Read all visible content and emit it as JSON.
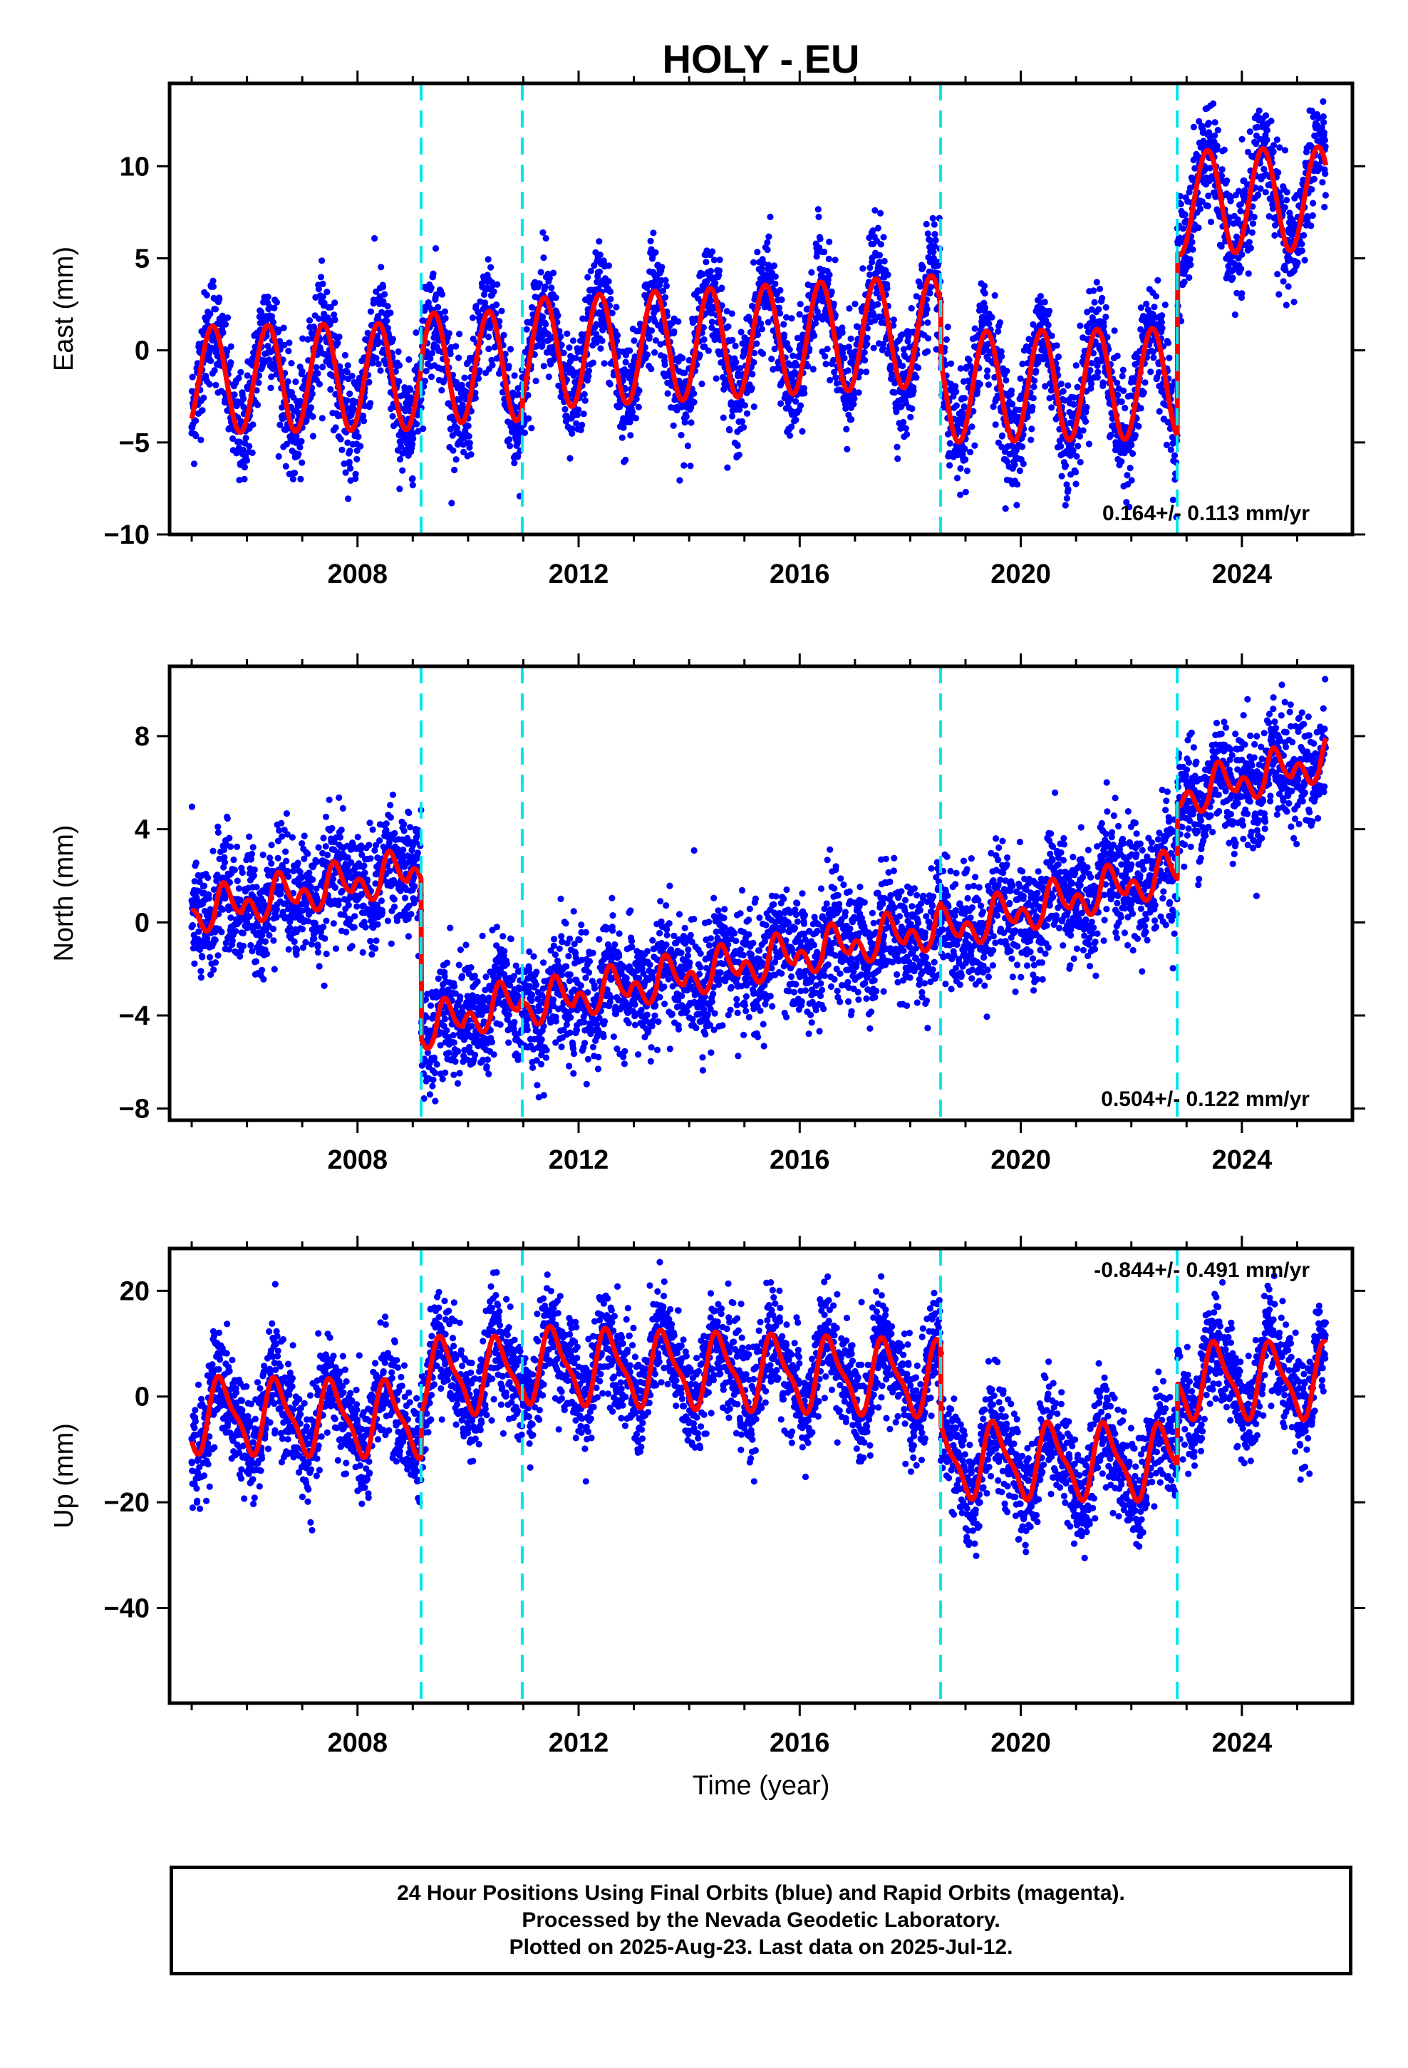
{
  "chart_data": [
    {
      "type": "scatter",
      "title": "HOLY - EU",
      "xlabel": "",
      "ylabel": "East (mm)",
      "xlim": [
        2004.6,
        2026.0
      ],
      "ylim": [
        -10,
        14.5
      ],
      "xticks": [
        2008,
        2012,
        2016,
        2020,
        2024
      ],
      "yticks": [
        -10,
        -5,
        0,
        5,
        10
      ],
      "rate_text": "0.164+/- 0.113 mm/yr",
      "rate_position": "bottom-right",
      "steps": [
        2009.15,
        2010.98,
        2018.55,
        2022.83
      ],
      "series": [
        {
          "kind": "points",
          "color": "#0000ff",
          "x": [
            2005.0,
            2005.5,
            2006.0,
            2006.5,
            2007.0,
            2007.5,
            2008.0,
            2008.5,
            2009.0,
            2009.5,
            2010.0,
            2010.5,
            2011.0,
            2011.5,
            2012.0,
            2012.5,
            2013.0,
            2013.5,
            2014.0,
            2014.5,
            2015.0,
            2015.5,
            2016.0,
            2016.5,
            2017.0,
            2017.5,
            2018.0,
            2018.5,
            2019.0,
            2019.5,
            2020.0,
            2020.5,
            2021.0,
            2021.5,
            2022.0,
            2022.5,
            2023.0,
            2023.5,
            2024.0,
            2024.5,
            2025.0,
            2025.5
          ],
          "y": [
            -4.5,
            1.0,
            -4.3,
            1.2,
            -4.2,
            1.4,
            -4.0,
            1.6,
            -4.0,
            1.8,
            -3.7,
            2.0,
            -3.5,
            3.0,
            -2.0,
            3.5,
            -2.0,
            3.8,
            -1.7,
            4.0,
            -1.5,
            4.2,
            -1.3,
            4.3,
            -1.2,
            4.4,
            -1.0,
            4.6,
            -4.8,
            0.8,
            -4.8,
            0.9,
            -4.6,
            1.0,
            -4.5,
            1.2,
            5.0,
            10.5,
            5.2,
            10.8,
            5.4,
            10.9
          ]
        },
        {
          "kind": "model",
          "color": "#ff0000",
          "description_none": ""
        }
      ]
    },
    {
      "type": "scatter",
      "xlabel": "",
      "ylabel": "North (mm)",
      "xlim": [
        2004.6,
        2026.0
      ],
      "ylim": [
        -8.5,
        11
      ],
      "xticks": [
        2008,
        2012,
        2016,
        2020,
        2024
      ],
      "yticks": [
        -8,
        -4,
        0,
        4,
        8
      ],
      "rate_text": "0.504+/- 0.122 mm/yr",
      "rate_position": "bottom-right",
      "steps": [
        2009.15,
        2010.98,
        2018.55,
        2022.83
      ],
      "series": [
        {
          "kind": "points",
          "color": "#0000ff",
          "x": [
            2005.0,
            2005.5,
            2006.0,
            2006.5,
            2007.0,
            2007.5,
            2008.0,
            2008.5,
            2009.0,
            2009.5,
            2010.0,
            2010.5,
            2011.0,
            2011.5,
            2012.0,
            2012.5,
            2013.0,
            2013.5,
            2014.0,
            2014.5,
            2015.0,
            2015.5,
            2016.0,
            2016.5,
            2017.0,
            2017.5,
            2018.0,
            2018.5,
            2019.0,
            2019.5,
            2020.0,
            2020.5,
            2021.0,
            2021.5,
            2022.0,
            2022.5,
            2023.0,
            2023.5,
            2024.0,
            2024.5,
            2025.0,
            2025.5
          ],
          "y": [
            -0.2,
            1.5,
            0.0,
            2.0,
            0.5,
            2.5,
            1.0,
            3.0,
            1.8,
            -3.5,
            -4.8,
            -3.0,
            -4.0,
            -2.0,
            -3.5,
            -1.5,
            -3.0,
            -1.2,
            -2.5,
            -1.0,
            -2.0,
            -0.5,
            -1.5,
            0.0,
            -1.0,
            0.8,
            -0.6,
            1.4,
            -0.8,
            1.2,
            -0.4,
            1.8,
            0.4,
            2.2,
            0.8,
            2.8,
            4.8,
            6.5,
            5.4,
            7.0,
            5.8,
            7.6
          ]
        },
        {
          "kind": "model",
          "color": "#ff0000"
        }
      ]
    },
    {
      "type": "scatter",
      "xlabel": "Time (year)",
      "ylabel": "Up (mm)",
      "xlim": [
        2004.6,
        2026.0
      ],
      "ylim": [
        -58,
        28
      ],
      "xticks": [
        2008,
        2012,
        2016,
        2020,
        2024
      ],
      "yticks": [
        -40,
        -20,
        0,
        20
      ],
      "rate_text": "-0.844+/- 0.491 mm/yr",
      "rate_position": "top-right",
      "steps": [
        2009.15,
        2010.98,
        2018.55,
        2022.83
      ],
      "series": [
        {
          "kind": "points",
          "color": "#0000ff",
          "x": [
            2005.0,
            2005.5,
            2006.0,
            2006.5,
            2007.0,
            2007.5,
            2008.0,
            2008.5,
            2009.0,
            2009.5,
            2010.0,
            2010.5,
            2011.0,
            2011.5,
            2012.0,
            2012.5,
            2013.0,
            2013.5,
            2014.0,
            2014.5,
            2015.0,
            2015.5,
            2016.0,
            2016.5,
            2017.0,
            2017.5,
            2018.0,
            2018.5,
            2019.0,
            2019.5,
            2020.0,
            2020.5,
            2021.0,
            2021.5,
            2022.0,
            2022.5,
            2023.0,
            2023.5,
            2024.0,
            2024.5,
            2025.0,
            2025.5
          ],
          "y": [
            -8,
            3,
            -9,
            2,
            -10,
            1,
            -11,
            0,
            -12,
            13,
            3,
            12,
            2,
            12,
            1,
            11,
            0,
            11,
            -1,
            11,
            -2,
            10,
            -3,
            9,
            -4,
            8,
            -4,
            6,
            -17,
            -6,
            -18,
            -7,
            -19,
            -8,
            -20,
            -9,
            1,
            10,
            -2,
            9,
            -3,
            8
          ]
        },
        {
          "kind": "model",
          "color": "#ff0000"
        }
      ]
    }
  ],
  "footer": {
    "line1": "24 Hour Positions Using Final Orbits (blue) and Rapid Orbits (magenta).",
    "line2": "Processed by the Nevada Geodetic Laboratory.",
    "line3": "Plotted on 2025-Aug-23. Last data on 2025-Jul-12."
  },
  "colors": {
    "points": "#0000ff",
    "model": "#ff0000",
    "steps": "#00e5ee",
    "frame": "#000000"
  }
}
